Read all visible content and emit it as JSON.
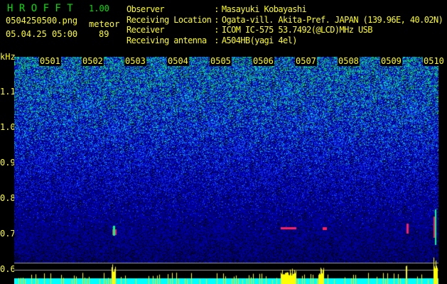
{
  "app": {
    "name": "H R O F F T",
    "version": "1.00"
  },
  "file": {
    "name": "0504250500.png",
    "datetime": "05.04.25 05:00"
  },
  "meteor": {
    "label": "meteor",
    "count": "89"
  },
  "info": [
    {
      "label": "Observer",
      "value": "Masayuki Kobayashi"
    },
    {
      "label": "Receiving Location",
      "value": "Ogata-vill. Akita-Pref. JAPAN (139.96E, 40.02N)"
    },
    {
      "label": "Receiver",
      "value": "ICOM IC-575 53.7492(@LCD)MHz USB"
    },
    {
      "label": "Receiving antenna",
      "value": "A504HB(yagi 4el)"
    }
  ],
  "spectrogram": {
    "y_unit": "kHz",
    "y_ticks": [
      "1.1",
      "1.0",
      "0.9",
      "0.8",
      "0.7",
      "0.6"
    ],
    "y_range_khz": [
      0.56,
      1.2
    ],
    "time_labels": [
      "0501",
      "0502",
      "0503",
      "0504",
      "0505",
      "0506",
      "0507",
      "0508",
      "0509",
      "0510"
    ],
    "colors": {
      "background": "#000000",
      "noise": "#0000c0",
      "signal": "#00ffff",
      "meteor": "#ff2060",
      "count_bars": "#ffff00",
      "baseline": "#00ffff"
    },
    "meteor_echoes_khz": [
      0.71,
      0.715,
      0.713,
      0.72,
      0.72
    ]
  }
}
